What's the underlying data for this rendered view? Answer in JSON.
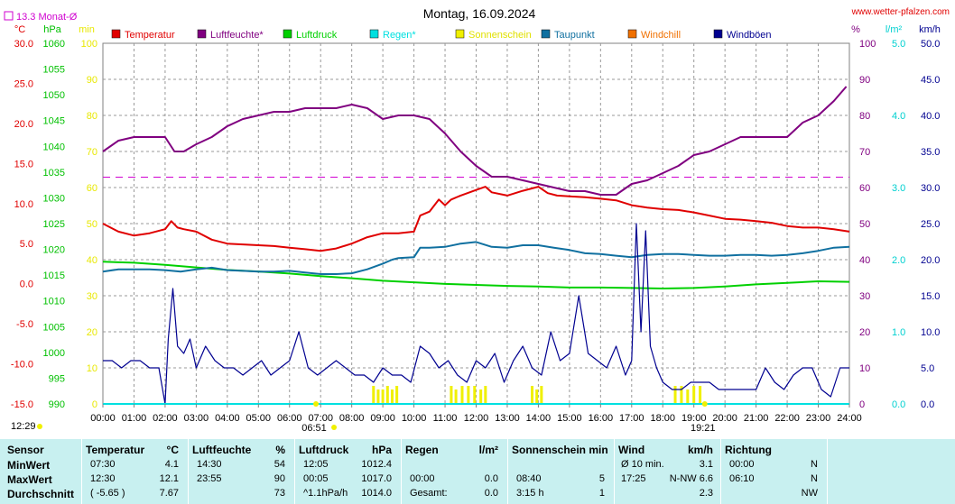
{
  "chart_data": {
    "type": "line",
    "title": "Montag, 16.09.2024",
    "site": "www.wetter-pfalzen.com",
    "monthly_avg_label": "13.3 Monat-Ø",
    "monthly_avg_temp": 13.3,
    "x_ticks": [
      "00:00",
      "01:00",
      "02:00",
      "03:00",
      "04:00",
      "05:00",
      "06:00",
      "07:00",
      "08:00",
      "09:00",
      "10:00",
      "11:00",
      "12:00",
      "13:00",
      "14:00",
      "15:00",
      "16:00",
      "17:00",
      "18:00",
      "19:00",
      "20:00",
      "21:00",
      "22:00",
      "23:00",
      "24:00"
    ],
    "sunrise": "06:51",
    "sunset": "19:21",
    "daylight": "12:29",
    "axes": {
      "temperature": {
        "unit": "°C",
        "range": [
          -15,
          30
        ],
        "ticks": [
          "30.0",
          "25.0",
          "20.0",
          "15.0",
          "10.0",
          "5.0",
          "0.0",
          "-5.0",
          "-10.0",
          "-15.0"
        ]
      },
      "pressure": {
        "unit": "hPa",
        "range": [
          990,
          1060
        ],
        "ticks": [
          "1060",
          "1055",
          "1050",
          "1045",
          "1040",
          "1035",
          "1030",
          "1025",
          "1020",
          "1015",
          "1010",
          "1005",
          "1000",
          "995",
          "990"
        ]
      },
      "sunshine": {
        "unit": "min",
        "range": [
          0,
          100
        ],
        "ticks": [
          "100",
          "90",
          "80",
          "70",
          "60",
          "50",
          "40",
          "30",
          "20",
          "10",
          "0"
        ]
      },
      "humidity": {
        "unit": "%",
        "range": [
          0,
          100
        ],
        "ticks": [
          "100",
          "90",
          "80",
          "70",
          "60",
          "50",
          "40",
          "30",
          "20",
          "10",
          "0"
        ]
      },
      "rain": {
        "unit": "l/m²",
        "range": [
          0,
          5
        ],
        "ticks": [
          "5.0",
          "4.0",
          "3.0",
          "2.0",
          "1.0",
          "0.0"
        ]
      },
      "wind": {
        "unit": "km/h",
        "range": [
          0,
          50
        ],
        "ticks": [
          "50.0",
          "45.0",
          "40.0",
          "35.0",
          "30.0",
          "25.0",
          "20.0",
          "15.0",
          "10.0",
          "5.0",
          "0.0"
        ]
      }
    },
    "legend": [
      {
        "name": "Temperatur",
        "color": "#e00000"
      },
      {
        "name": "Luftfeuchte*",
        "color": "#800080"
      },
      {
        "name": "Luftdruck",
        "color": "#00d000"
      },
      {
        "name": "Regen*",
        "color": "#00e0e0"
      },
      {
        "name": "Sonnenschein",
        "color": "#f0f000"
      },
      {
        "name": "Taupunkt",
        "color": "#1070a0"
      },
      {
        "name": "Windchill",
        "color": "#f07000"
      },
      {
        "name": "Windböen",
        "color": "#000090"
      }
    ],
    "series": [
      {
        "name": "Temperatur",
        "axis": "temperature",
        "color": "#e00000",
        "x": [
          0,
          0.5,
          1,
          1.5,
          2,
          2.2,
          2.4,
          2.6,
          3,
          3.5,
          4,
          4.5,
          5,
          5.5,
          6,
          6.5,
          7,
          7.5,
          8,
          8.5,
          9,
          9.5,
          10,
          10.2,
          10.5,
          10.8,
          11,
          11.2,
          11.5,
          12,
          12.3,
          12.5,
          13,
          13.5,
          14,
          14.3,
          14.6,
          15,
          15.5,
          16,
          16.5,
          17,
          17.5,
          18,
          18.5,
          19,
          19.5,
          20,
          20.5,
          21,
          21.5,
          22,
          22.5,
          23,
          23.5,
          24
        ],
        "y": [
          7.5,
          6.5,
          6.0,
          6.3,
          6.8,
          7.8,
          7.0,
          6.8,
          6.5,
          5.5,
          5.0,
          4.9,
          4.8,
          4.7,
          4.5,
          4.3,
          4.1,
          4.4,
          5.0,
          5.8,
          6.3,
          6.3,
          6.5,
          8.5,
          9.0,
          10.5,
          9.8,
          10.5,
          11.0,
          11.7,
          12.1,
          11.4,
          11.0,
          11.6,
          12.1,
          11.3,
          11.0,
          10.9,
          10.8,
          10.6,
          10.4,
          9.8,
          9.5,
          9.3,
          9.2,
          8.9,
          8.5,
          8.1,
          8.0,
          7.8,
          7.6,
          7.2,
          7.0,
          7.0,
          6.8,
          6.5
        ]
      },
      {
        "name": "Luftfeuchte*",
        "axis": "humidity",
        "color": "#800080",
        "x": [
          0,
          0.5,
          1,
          1.5,
          2,
          2.3,
          2.6,
          3,
          3.5,
          4,
          4.5,
          5,
          5.5,
          6,
          6.5,
          7,
          7.5,
          8,
          8.5,
          9,
          9.5,
          10,
          10.5,
          11,
          11.5,
          12,
          12.5,
          13,
          13.5,
          14,
          14.5,
          15,
          15.5,
          16,
          16.5,
          17,
          17.5,
          18,
          18.5,
          19,
          19.5,
          20,
          20.5,
          21,
          21.5,
          22,
          22.5,
          23,
          23.5,
          23.9
        ],
        "y": [
          70,
          73,
          74,
          74,
          74,
          70,
          70,
          72,
          74,
          77,
          79,
          80,
          81,
          81,
          82,
          82,
          82,
          83,
          82,
          79,
          80,
          80,
          79,
          75,
          70,
          66,
          63,
          63,
          62,
          61,
          60,
          59,
          59,
          58,
          58,
          61,
          62,
          64,
          66,
          69,
          70,
          72,
          74,
          74,
          74,
          74,
          78,
          80,
          84,
          88
        ]
      },
      {
        "name": "Luftdruck",
        "axis": "pressure",
        "color": "#00d000",
        "x": [
          0,
          1,
          2,
          3,
          4,
          5,
          6,
          7,
          8,
          9,
          10,
          11,
          12,
          13,
          14,
          15,
          16,
          17,
          18,
          19,
          20,
          21,
          22,
          23,
          24
        ],
        "y": [
          1017.6,
          1017.4,
          1017.0,
          1016.5,
          1016.0,
          1015.7,
          1015.3,
          1014.8,
          1014.4,
          1013.9,
          1013.6,
          1013.3,
          1013.1,
          1012.9,
          1012.8,
          1012.6,
          1012.6,
          1012.5,
          1012.4,
          1012.5,
          1012.8,
          1013.2,
          1013.5,
          1013.8,
          1013.7
        ]
      },
      {
        "name": "Taupunkt",
        "axis": "temperature",
        "color": "#1070a0",
        "x": [
          0,
          0.5,
          1,
          1.5,
          2,
          2.5,
          3,
          3.5,
          4,
          4.5,
          5,
          5.5,
          6,
          6.5,
          7,
          7.5,
          8,
          8.5,
          9,
          9.3,
          9.5,
          10,
          10.2,
          10.5,
          11,
          11.5,
          12,
          12.5,
          13,
          13.5,
          14,
          14.5,
          15,
          15.5,
          16,
          16.5,
          17,
          17.5,
          18,
          18.5,
          19,
          19.5,
          20,
          20.5,
          21,
          21.5,
          22,
          22.5,
          23,
          23.5,
          24
        ],
        "y": [
          1.5,
          1.8,
          1.8,
          1.8,
          1.7,
          1.5,
          1.8,
          2.0,
          1.7,
          1.6,
          1.5,
          1.5,
          1.6,
          1.4,
          1.2,
          1.2,
          1.3,
          1.8,
          2.5,
          3.0,
          3.2,
          3.3,
          4.5,
          4.5,
          4.6,
          5.0,
          5.2,
          4.6,
          4.5,
          4.8,
          4.8,
          4.5,
          4.2,
          3.8,
          3.7,
          3.5,
          3.3,
          3.6,
          3.7,
          3.7,
          3.6,
          3.5,
          3.5,
          3.6,
          3.6,
          3.5,
          3.6,
          3.8,
          4.1,
          4.5,
          4.6
        ]
      },
      {
        "name": "Windböen",
        "axis": "wind",
        "color": "#000090",
        "x": [
          0,
          0.3,
          0.6,
          0.9,
          1.2,
          1.5,
          1.8,
          2.0,
          2.1,
          2.25,
          2.4,
          2.6,
          2.8,
          3.0,
          3.3,
          3.6,
          3.9,
          4.2,
          4.5,
          4.8,
          5.1,
          5.4,
          5.7,
          6.0,
          6.3,
          6.6,
          6.9,
          7.2,
          7.5,
          7.8,
          8.1,
          8.4,
          8.7,
          9.0,
          9.3,
          9.6,
          9.9,
          10.2,
          10.5,
          10.8,
          11.1,
          11.4,
          11.7,
          12.0,
          12.3,
          12.6,
          12.9,
          13.2,
          13.5,
          13.8,
          14.1,
          14.4,
          14.7,
          15.0,
          15.3,
          15.6,
          15.9,
          16.2,
          16.5,
          16.8,
          17.0,
          17.15,
          17.3,
          17.45,
          17.6,
          17.8,
          18.0,
          18.3,
          18.6,
          18.9,
          19.2,
          19.5,
          19.8,
          20.1,
          20.4,
          20.7,
          21.0,
          21.3,
          21.6,
          21.9,
          22.2,
          22.5,
          22.8,
          23.1,
          23.4,
          23.7,
          24.0
        ],
        "y": [
          6,
          6,
          5,
          6,
          6,
          5,
          5,
          0,
          9,
          16,
          8,
          7,
          9,
          5,
          8,
          6,
          5,
          5,
          4,
          5,
          6,
          4,
          5,
          6,
          10,
          5,
          4,
          5,
          6,
          5,
          4,
          4,
          3,
          5,
          4,
          4,
          3,
          8,
          7,
          5,
          6,
          4,
          3,
          6,
          5,
          7,
          3,
          6,
          8,
          5,
          4,
          10,
          6,
          7,
          15,
          7,
          6,
          5,
          8,
          4,
          6,
          25,
          10,
          24,
          8,
          5,
          3,
          2,
          2,
          3,
          3,
          3,
          2,
          2,
          2,
          2,
          2,
          5,
          3,
          2,
          4,
          5,
          5,
          2,
          1,
          5,
          5
        ]
      },
      {
        "name": "Regen*",
        "axis": "rain",
        "color": "#00e0e0",
        "x": [
          0,
          24
        ],
        "y": [
          0,
          0
        ]
      },
      {
        "name": "Sonnenschein",
        "axis": "sunshine",
        "color": "#f0f000",
        "x": [
          8.7,
          8.85,
          9.0,
          9.15,
          9.3,
          9.45,
          11.2,
          11.35,
          11.55,
          11.75,
          11.95,
          12.15,
          12.3,
          13.8,
          13.95,
          14.1,
          18.4,
          18.6,
          18.8,
          19.0,
          19.2
        ],
        "y": [
          5,
          4,
          4,
          5,
          4,
          5,
          5,
          4,
          5,
          5,
          5,
          4,
          5,
          5,
          4,
          5,
          5,
          5,
          4,
          5,
          5
        ]
      }
    ]
  },
  "stats": {
    "header": [
      "Sensor",
      "Temperatur",
      "°C",
      "Luftfeuchte",
      "%",
      "Luftdruck",
      "hPa",
      "Regen",
      "l/m²",
      "Sonnenschein min",
      "Wind",
      "km/h",
      "Richtung"
    ],
    "rows": [
      {
        "label": "MinWert",
        "t_time": "07:30",
        "t_val": "4.1",
        "h_time": "14:30",
        "h_val": "54",
        "p_time": "12:05",
        "p_val": "1012.4",
        "r_time": "",
        "r_val": "",
        "s_time": "",
        "s_val": "",
        "w_time": "Ø 10 min.",
        "w_val": "3.1",
        "d_time": "00:00",
        "d_val": "N"
      },
      {
        "label": "MaxWert",
        "t_time": "12:30",
        "t_val": "12.1",
        "h_time": "23:55",
        "h_val": "90",
        "p_time": "00:05",
        "p_val": "1017.0",
        "r_time": "00:00",
        "r_val": "0.0",
        "s_time": "08:40",
        "s_val": "5",
        "w_time": "17:25",
        "w_val": "N-NW 6.6",
        "d_time": "06:10",
        "d_val": "N"
      },
      {
        "label": "Durchschnitt",
        "t_time": "( -5.65 )",
        "t_val": "7.67",
        "h_time": "",
        "h_val": "73",
        "p_time": "^1.1hPa/h",
        "p_val": "1014.0",
        "r_time": "Gesamt:",
        "r_val": "0.0",
        "s_time": "3:15 h",
        "s_val": "1",
        "w_time": "",
        "w_val": "2.3",
        "d_time": "",
        "d_val": "NW"
      }
    ]
  }
}
